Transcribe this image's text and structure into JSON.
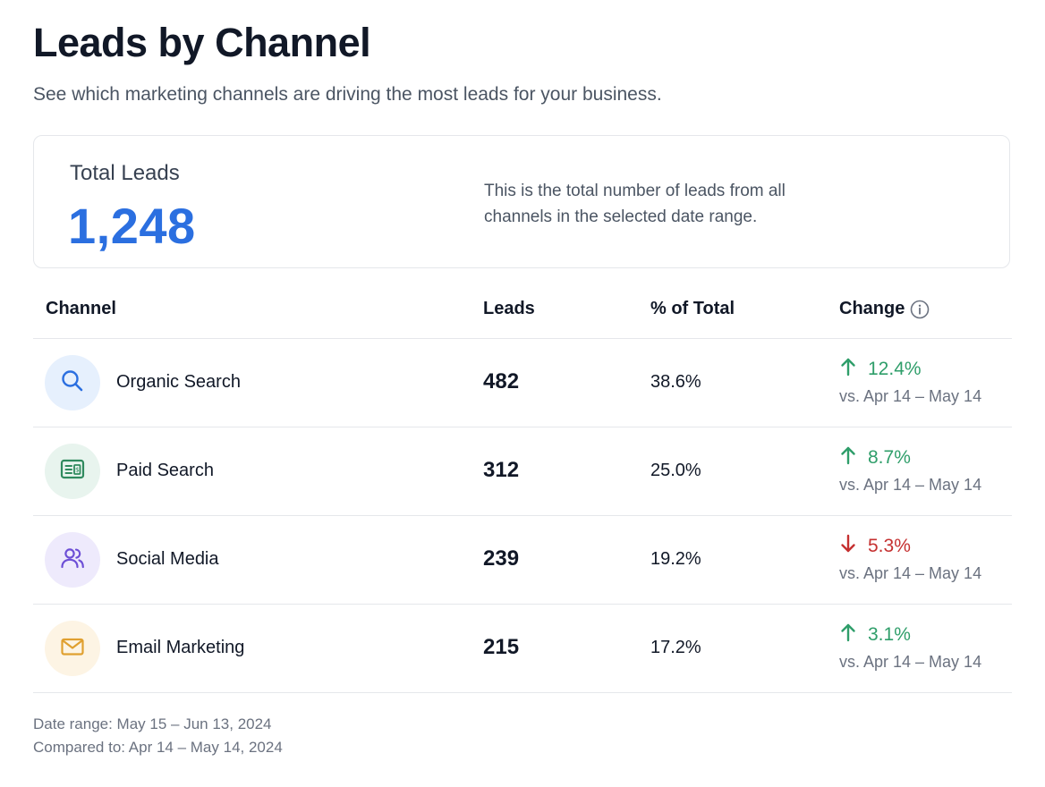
{
  "header": {
    "title": "Leads by Channel",
    "subtitle": "See which marketing channels are driving the most leads for your business."
  },
  "summary": {
    "label": "Total Leads",
    "value": "1,248",
    "description": "This is the total number of leads from all channels in the selected date range."
  },
  "table": {
    "columns": {
      "channel": "Channel",
      "leads": "Leads",
      "pct": "% of Total",
      "change": "Change"
    },
    "rows": [
      {
        "name": "Organic Search",
        "icon": "search-icon",
        "leads": "482",
        "pct": "38.6%",
        "direction": "up",
        "change": "12.4%",
        "compare": "vs. Apr 14 – May 14"
      },
      {
        "name": "Paid Search",
        "icon": "ad-icon",
        "leads": "312",
        "pct": "25.0%",
        "direction": "up",
        "change": "8.7%",
        "compare": "vs. Apr 14 – May 14"
      },
      {
        "name": "Social Media",
        "icon": "users-icon",
        "leads": "239",
        "pct": "19.2%",
        "direction": "down",
        "change": "5.3%",
        "compare": "vs. Apr 14 – May 14"
      },
      {
        "name": "Email Marketing",
        "icon": "mail-icon",
        "leads": "215",
        "pct": "17.2%",
        "direction": "up",
        "change": "3.1%",
        "compare": "vs. Apr 14 – May 14"
      }
    ]
  },
  "footer": {
    "date_range": "Date range: May 15 – Jun 13, 2024",
    "compared_to": "Compared to: Apr 14 – May 14, 2024"
  },
  "colors": {
    "accent": "#2b6fe0",
    "positive": "#2f9e6a",
    "negative": "#c53030",
    "organic_bg": "#e6f0fd",
    "paid_bg": "#e8f4ee",
    "social_bg": "#eeeafc",
    "email_bg": "#fdf4e4"
  }
}
